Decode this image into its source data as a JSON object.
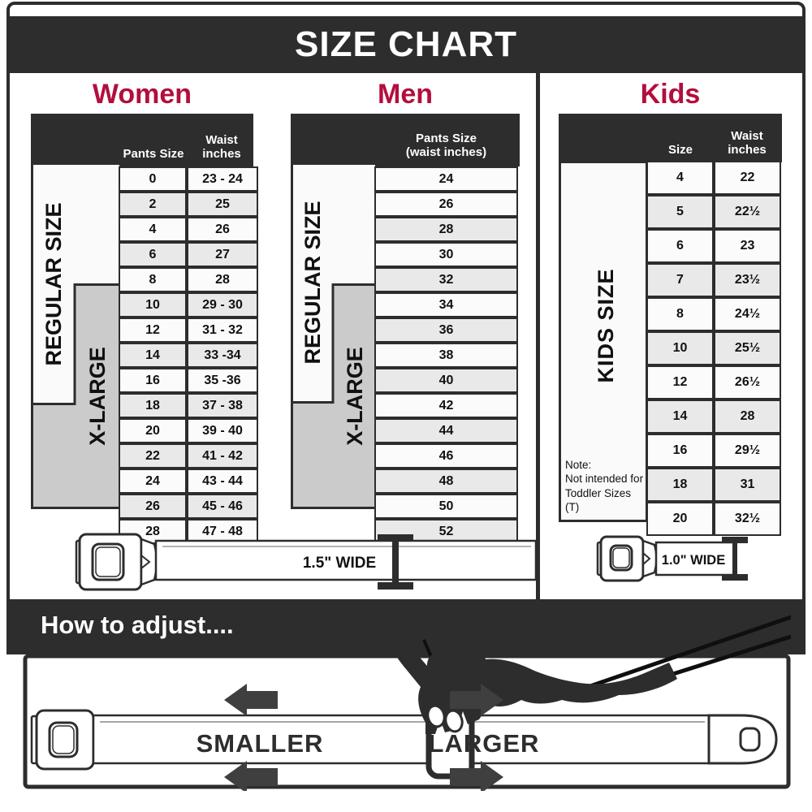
{
  "title": "SIZE CHART",
  "colors": {
    "accent": "#b30e3e",
    "dark": "#2d2d2d",
    "row_light": "#fbfbfb",
    "row_shaded": "#e9e9e9",
    "xlarge_gray": "#cbcbcb"
  },
  "sections": {
    "women": {
      "heading": "Women",
      "columns": {
        "col1": "Pants Size",
        "col2_line1": "Waist",
        "col2_line2": "inches"
      },
      "regular_label": "REGULAR SIZE",
      "xlarge_label": "X-LARGE",
      "rows": [
        {
          "size": "0",
          "waist": "23 - 24",
          "shade": "a"
        },
        {
          "size": "2",
          "waist": "25",
          "shade": "b"
        },
        {
          "size": "4",
          "waist": "26",
          "shade": "a"
        },
        {
          "size": "6",
          "waist": "27",
          "shade": "b"
        },
        {
          "size": "8",
          "waist": "28",
          "shade": "a"
        },
        {
          "size": "10",
          "waist": "29 - 30",
          "shade": "b"
        },
        {
          "size": "12",
          "waist": "31 - 32",
          "shade": "a"
        },
        {
          "size": "14",
          "waist": "33 -34",
          "shade": "b"
        },
        {
          "size": "16",
          "waist": "35 -36",
          "shade": "a"
        },
        {
          "size": "18",
          "waist": "37 - 38",
          "shade": "b"
        },
        {
          "size": "20",
          "waist": "39 - 40",
          "shade": "a"
        },
        {
          "size": "22",
          "waist": "41 - 42",
          "shade": "b"
        },
        {
          "size": "24",
          "waist": "43 - 44",
          "shade": "a"
        },
        {
          "size": "26",
          "waist": "45 - 46",
          "shade": "b"
        },
        {
          "size": "28",
          "waist": "47 - 48",
          "shade": "a"
        }
      ]
    },
    "men": {
      "heading": "Men",
      "columns": {
        "line1": "Pants Size",
        "line2": "(waist inches)"
      },
      "regular_label": "REGULAR SIZE",
      "xlarge_label": "X-LARGE",
      "rows": [
        {
          "size": "24",
          "shade": "a"
        },
        {
          "size": "26",
          "shade": "a"
        },
        {
          "size": "28",
          "shade": "b"
        },
        {
          "size": "30",
          "shade": "a"
        },
        {
          "size": "32",
          "shade": "b"
        },
        {
          "size": "34",
          "shade": "a"
        },
        {
          "size": "36",
          "shade": "b"
        },
        {
          "size": "38",
          "shade": "a"
        },
        {
          "size": "40",
          "shade": "b"
        },
        {
          "size": "42",
          "shade": "a"
        },
        {
          "size": "44",
          "shade": "b"
        },
        {
          "size": "46",
          "shade": "a"
        },
        {
          "size": "48",
          "shade": "b"
        },
        {
          "size": "50",
          "shade": "a"
        },
        {
          "size": "52",
          "shade": "b"
        }
      ]
    },
    "kids": {
      "heading": "Kids",
      "columns": {
        "col1": "Size",
        "col2_line1": "Waist",
        "col2_line2": "inches"
      },
      "side_label": "KIDS SIZE",
      "note_lines": [
        "Note:",
        "Not intended for",
        "Toddler Sizes (T)"
      ],
      "rows": [
        {
          "size": "4",
          "waist": "22",
          "shade": "a"
        },
        {
          "size": "5",
          "waist": "22½",
          "shade": "b"
        },
        {
          "size": "6",
          "waist": "23",
          "shade": "a"
        },
        {
          "size": "7",
          "waist": "23½",
          "shade": "b"
        },
        {
          "size": "8",
          "waist": "24½",
          "shade": "a"
        },
        {
          "size": "10",
          "waist": "25½",
          "shade": "b"
        },
        {
          "size": "12",
          "waist": "26½",
          "shade": "a"
        },
        {
          "size": "14",
          "waist": "28",
          "shade": "b"
        },
        {
          "size": "16",
          "waist": "29½",
          "shade": "a"
        },
        {
          "size": "18",
          "waist": "31",
          "shade": "b"
        },
        {
          "size": "20",
          "waist": "32½",
          "shade": "a"
        }
      ]
    }
  },
  "belts": {
    "adult_label": "1.5\" WIDE",
    "kids_label": "1.0\" WIDE"
  },
  "how_to": {
    "heading": "How to adjust....",
    "smaller_label": "SMALLER",
    "larger_label": "LARGER"
  }
}
